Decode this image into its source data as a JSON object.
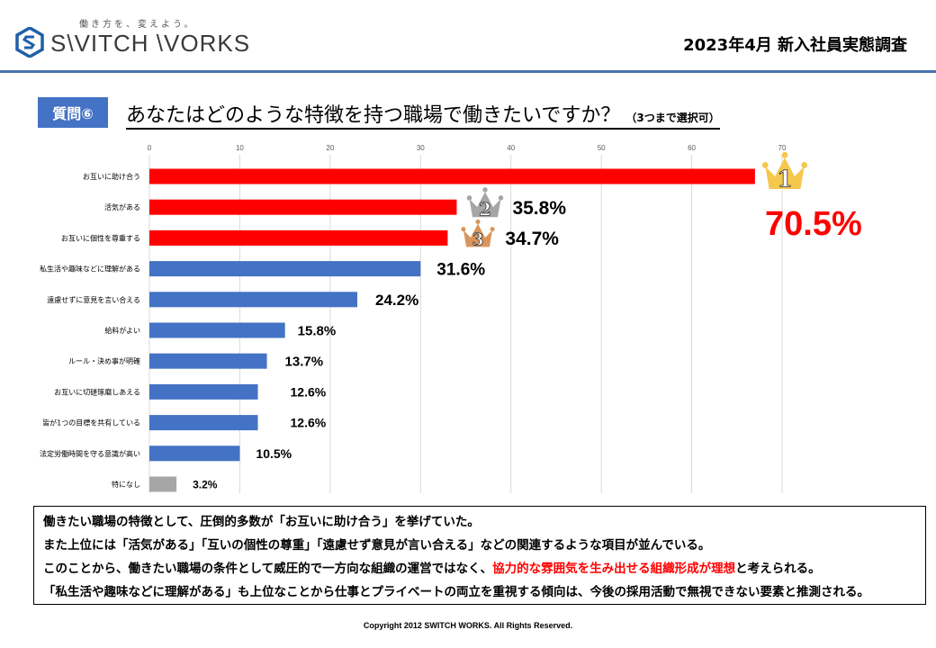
{
  "header": {
    "tagline": "働き方を、変えよう。",
    "logo_text": "S\\VITCH \\VORKS",
    "report_title": "2023年4月  新入社員実態調査"
  },
  "question": {
    "badge": "質問⑥",
    "text": "あなたはどのような特徴を持つ職場で働きたいですか？",
    "note": "（3つまで選択可）"
  },
  "colors": {
    "top3": "#ff0000",
    "others": "#4472c4",
    "none": "#a6a6a6",
    "gold": "#f5c84c",
    "silver": "#a6a6a6",
    "bronze": "#d9955b",
    "header_rule": "#4a72b0"
  },
  "chart_data": {
    "type": "bar",
    "orientation": "horizontal",
    "title": "あなたはどのような特徴を持つ職場で働きたいですか？（3つまで選択可）",
    "xlabel": "",
    "ylabel": "",
    "xlim": [
      0,
      70
    ],
    "xticks": [
      0,
      10,
      20,
      30,
      40,
      50,
      60,
      70
    ],
    "grid": true,
    "legend": "none",
    "categories": [
      "お互いに助け合う",
      "活気がある",
      "お互いに個性を尊重する",
      "私生活や趣味などに理解がある",
      "遠慮せずに意見を言い合える",
      "給料がよい",
      "ルール・決め事が明確",
      "お互いに切磋琢磨しあえる",
      "皆が1つの目標を共有している",
      "法定労働時間を守る意識が高い",
      "特になし"
    ],
    "values": [
      67,
      34,
      33,
      30,
      23,
      15,
      13,
      12,
      12,
      10,
      3
    ],
    "data_labels": [
      "70.5%",
      "35.8%",
      "34.7%",
      "31.6%",
      "24.2%",
      "15.8%",
      "13.7%",
      "12.6%",
      "12.6%",
      "10.5%",
      "3.2%"
    ],
    "bar_groups": [
      "top3",
      "top3",
      "top3",
      "others",
      "others",
      "others",
      "others",
      "others",
      "others",
      "others",
      "none"
    ],
    "rank_annotations": [
      {
        "category": "お互いに助け合う",
        "rank": "1",
        "medal": "gold"
      },
      {
        "category": "活気がある",
        "rank": "2",
        "medal": "silver"
      },
      {
        "category": "お互いに個性を尊重する",
        "rank": "3",
        "medal": "bronze"
      }
    ]
  },
  "summary": {
    "line1": "働きたい職場の特徴として、圧倒的多数が「お互いに助け合う」を挙げていた。",
    "line2": "また上位には「活気がある」「互いの個性の尊重」「遠慮せず意見が言い合える」などの関連するような項目が並んでいる。",
    "line3_pre": "このことから、働きたい職場の条件として威圧的で一方向な組織の運営ではなく、",
    "line3_highlight": "協力的な雰囲気を生み出せる組織形成が理想",
    "line3_post": "と考えられる。",
    "line4": "「私生活や趣味などに理解がある」も上位なことから仕事とプライベートの両立を重視する傾向は、今後の採用活動で無視できない要素と推測される。"
  },
  "footer": {
    "copyright": "Copyright 2012 SWITCH  WORKS.  All Rights Reserved."
  }
}
